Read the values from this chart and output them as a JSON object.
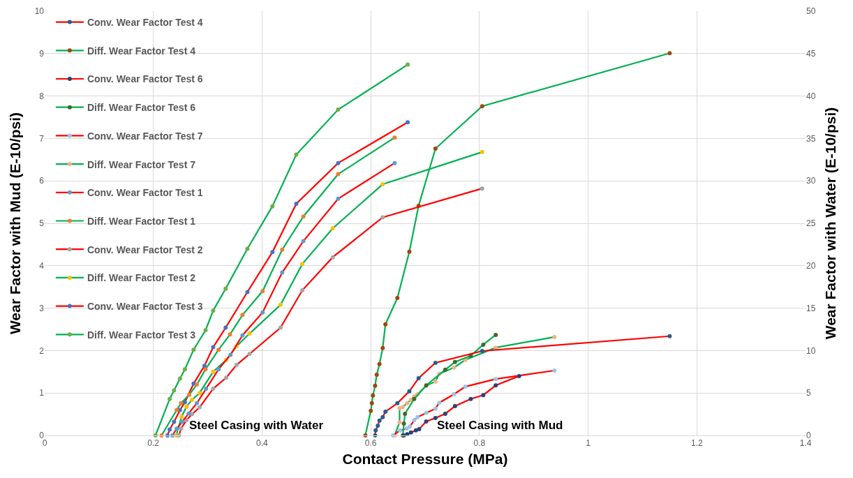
{
  "chart_data": {
    "type": "line",
    "xlabel": "Contact Pressure (MPa)",
    "ylabel": "Wear Factor with Mud (E-10/psi)",
    "y2label": "Wear Factor with Water (E-10/psi)",
    "xlim": [
      0,
      1.4
    ],
    "xticks": [
      0,
      0.2,
      0.4,
      0.6,
      0.8,
      1,
      1.2,
      1.4
    ],
    "ylim": [
      0,
      10
    ],
    "yticks": [
      0,
      1,
      2,
      3,
      4,
      5,
      6,
      7,
      8,
      9,
      10
    ],
    "y2lim": [
      0,
      50
    ],
    "y2ticks": [
      0,
      5,
      10,
      15,
      20,
      25,
      30,
      35,
      40,
      45,
      50
    ],
    "grid": true,
    "legend": "top left",
    "marker": "circle",
    "line_style": "solid",
    "annotations": [
      "Steel Casing with Water",
      "Steel Casing with Mud"
    ],
    "series": [
      {
        "name": "Conv. Wear Factor Test 4",
        "color": "#ff0000",
        "colors": [
          "#255e91",
          "#255e91",
          "#255e91",
          "#255e91",
          "#255e91",
          "#255e91",
          "#255e91",
          "#255e91",
          "#255e91",
          "#255e91",
          "#255e91",
          "#255e91"
        ],
        "x": [
          0.608,
          0.609,
          0.613,
          0.616,
          0.622,
          0.627,
          0.649,
          0.671,
          0.688,
          0.719,
          0.805,
          1.15
        ],
        "values": [
          0,
          0.12,
          0.23,
          0.35,
          0.43,
          0.56,
          0.76,
          1.04,
          1.35,
          1.71,
          1.99,
          2.34
        ]
      },
      {
        "name": "Diff. Wear Factor Test 4",
        "color": "#00b050",
        "colors": [
          "#9e480e",
          "#9e480e",
          "#9e480e",
          "#9e480e",
          "#9e480e",
          "#9e480e",
          "#9e480e",
          "#9e480e",
          "#9e480e",
          "#9e480e",
          "#9e480e",
          "#9e480e",
          "#9e480e",
          "#9e480e",
          "#9e480e"
        ],
        "x": [
          0.59,
          0.6,
          0.602,
          0.604,
          0.608,
          0.611,
          0.616,
          0.622,
          0.627,
          0.649,
          0.671,
          0.688,
          0.719,
          0.805,
          1.15
        ],
        "values": [
          0,
          0.58,
          0.76,
          0.94,
          1.17,
          1.43,
          1.68,
          2.06,
          2.62,
          3.24,
          4.33,
          5.41,
          6.76,
          7.76,
          9.01
        ]
      },
      {
        "name": "Conv. Wear Factor Test 6",
        "color": "#ff0000",
        "colors": [
          "#264478",
          "#264478",
          "#264478",
          "#264478",
          "#264478",
          "#264478",
          "#264478",
          "#264478",
          "#264478",
          "#264478",
          "#264478",
          "#264478",
          "#264478"
        ],
        "x": [
          0.661,
          0.667,
          0.674,
          0.683,
          0.689,
          0.702,
          0.719,
          0.737,
          0.755,
          0.784,
          0.807,
          0.83,
          0.873
        ],
        "values": [
          0,
          0.03,
          0.07,
          0.12,
          0.15,
          0.33,
          0.41,
          0.51,
          0.69,
          0.86,
          0.95,
          1.18,
          1.4
        ]
      },
      {
        "name": "Diff. Wear Factor Test 6",
        "color": "#00b050",
        "colors": [
          "#43682b",
          "#43682b",
          "#43682b",
          "#43682b",
          "#43682b",
          "#43682b",
          "#43682b",
          "#43682b",
          "#43682b",
          "#43682b"
        ],
        "x": [
          0.659,
          0.661,
          0.663,
          0.68,
          0.702,
          0.737,
          0.755,
          0.784,
          0.807,
          0.83
        ],
        "values": [
          0,
          0.28,
          0.51,
          0.86,
          1.18,
          1.55,
          1.73,
          1.88,
          2.14,
          2.37
        ]
      },
      {
        "name": "Conv. Wear Factor Test 7",
        "color": "#ff0000",
        "colors": [
          "#9dc3e6",
          "#9dc3e6",
          "#9dc3e6",
          "#9dc3e6",
          "#9dc3e6",
          "#9dc3e6",
          "#9dc3e6",
          "#9dc3e6",
          "#9dc3e6",
          "#9dc3e6",
          "#9dc3e6",
          "#9dc3e6",
          "#9dc3e6"
        ],
        "x": [
          0.641,
          0.654,
          0.666,
          0.672,
          0.68,
          0.686,
          0.702,
          0.719,
          0.726,
          0.753,
          0.774,
          0.83,
          0.938
        ],
        "values": [
          0,
          0.12,
          0.16,
          0.21,
          0.36,
          0.43,
          0.53,
          0.63,
          0.77,
          0.97,
          1.15,
          1.33,
          1.53
        ]
      },
      {
        "name": "Diff. Wear Factor Test 7",
        "color": "#00b050",
        "colors": [
          "#f4b183",
          "#f4b183",
          "#f4b183",
          "#f4b183",
          "#f4b183",
          "#f4b183",
          "#f4b183",
          "#f4b183",
          "#f4b183",
          "#f4b183",
          "#f4b183",
          "#f4b183",
          "#f4b183",
          "#f4b183",
          "#f4b183"
        ],
        "x": [
          0.644,
          0.653,
          0.653,
          0.659,
          0.667,
          0.674,
          0.68,
          0.686,
          0.702,
          0.719,
          0.726,
          0.753,
          0.774,
          0.83,
          0.938
        ],
        "values": [
          0,
          0.31,
          0.64,
          0.67,
          0.76,
          0.84,
          0.92,
          0.97,
          1.17,
          1.27,
          1.45,
          1.6,
          1.78,
          2.07,
          2.32
        ]
      },
      {
        "name": "Conv. Wear Factor Test 1",
        "color": "#ff0000",
        "axis": "y2",
        "colors": [
          "#5b9bd5",
          "#5b9bd5",
          "#5b9bd5",
          "#5b9bd5",
          "#5b9bd5",
          "#5b9bd5",
          "#5b9bd5",
          "#5b9bd5",
          "#5b9bd5",
          "#5b9bd5",
          "#5b9bd5",
          "#5b9bd5",
          "#5b9bd5",
          "#5b9bd5"
        ],
        "x": [
          0.235,
          0.243,
          0.253,
          0.265,
          0.28,
          0.297,
          0.32,
          0.342,
          0.364,
          0.401,
          0.437,
          0.476,
          0.54,
          0.644
        ],
        "values": [
          0,
          0.8,
          1.6,
          2.6,
          3.8,
          5.5,
          7.8,
          9.5,
          11.8,
          14.5,
          19.2,
          22.9,
          27.9,
          32.1
        ]
      },
      {
        "name": "Diff. Wear Factor Test 1",
        "color": "#00b050",
        "axis": "y2",
        "colors": [
          "#ed7d31",
          "#ed7d31",
          "#ed7d31",
          "#ed7d31",
          "#ed7d31",
          "#ed7d31",
          "#ed7d31",
          "#ed7d31",
          "#ed7d31",
          "#ed7d31",
          "#ed7d31",
          "#ed7d31",
          "#ed7d31",
          "#ed7d31"
        ],
        "x": [
          0.215,
          0.243,
          0.251,
          0.266,
          0.28,
          0.296,
          0.32,
          0.341,
          0.364,
          0.401,
          0.437,
          0.476,
          0.54,
          0.644
        ],
        "values": [
          0,
          3,
          3.8,
          4.8,
          6,
          7.8,
          10.1,
          11.9,
          14.2,
          17,
          21.9,
          25.8,
          30.8,
          35.1
        ]
      },
      {
        "name": "Conv. Wear Factor Test 2",
        "color": "#ff0000",
        "axis": "y2",
        "colors": [
          "#a5a5a5",
          "#a5a5a5",
          "#a5a5a5",
          "#a5a5a5",
          "#a5a5a5",
          "#a5a5a5",
          "#a5a5a5",
          "#a5a5a5",
          "#a5a5a5",
          "#a5a5a5",
          "#a5a5a5",
          "#a5a5a5",
          "#a5a5a5",
          "#a5a5a5"
        ],
        "x": [
          0.247,
          0.251,
          0.261,
          0.271,
          0.285,
          0.31,
          0.334,
          0.353,
          0.377,
          0.434,
          0.474,
          0.53,
          0.622,
          0.805
        ],
        "values": [
          0,
          0.8,
          1.8,
          2.5,
          3.3,
          5.5,
          6.8,
          8.3,
          9.6,
          12.7,
          17.1,
          21,
          25.7,
          29.1
        ]
      },
      {
        "name": "Diff. Wear Factor Test 2",
        "color": "#00b050",
        "axis": "y2",
        "colors": [
          "#ffc000",
          "#ffc000",
          "#ffc000",
          "#ffc000",
          "#ffc000",
          "#ffc000",
          "#ffc000",
          "#ffc000",
          "#ffc000",
          "#ffc000",
          "#ffc000",
          "#ffc000",
          "#ffc000",
          "#ffc000"
        ],
        "x": [
          0.242,
          0.252,
          0.261,
          0.271,
          0.285,
          0.31,
          0.334,
          0.353,
          0.377,
          0.434,
          0.474,
          0.53,
          0.622,
          0.805
        ],
        "values": [
          0,
          2.2,
          3.4,
          4.2,
          5,
          7.5,
          8.9,
          10.5,
          12,
          15.4,
          20.2,
          24.4,
          29.6,
          33.4
        ]
      },
      {
        "name": "Conv. Wear Factor Test 3",
        "color": "#ff0000",
        "axis": "y2",
        "colors": [
          "#4472c4",
          "#4472c4",
          "#4472c4",
          "#4472c4",
          "#4472c4",
          "#4472c4",
          "#4472c4",
          "#4472c4",
          "#4472c4",
          "#4472c4",
          "#4472c4",
          "#4472c4",
          "#4472c4",
          "#4472c4"
        ],
        "x": [
          0.226,
          0.23,
          0.238,
          0.249,
          0.258,
          0.274,
          0.294,
          0.31,
          0.333,
          0.373,
          0.419,
          0.463,
          0.54,
          0.668
        ],
        "values": [
          0,
          0.7,
          1.6,
          3,
          3.9,
          6.1,
          8.2,
          10.4,
          12.7,
          16.9,
          21.6,
          27.3,
          32.1,
          36.9
        ]
      },
      {
        "name": "Diff. Wear Factor Test 3",
        "color": "#00b050",
        "axis": "y2",
        "colors": [
          "#70ad47",
          "#70ad47",
          "#70ad47",
          "#70ad47",
          "#70ad47",
          "#70ad47",
          "#70ad47",
          "#70ad47",
          "#70ad47",
          "#70ad47",
          "#70ad47",
          "#70ad47",
          "#70ad47",
          "#70ad47"
        ],
        "x": [
          0.204,
          0.23,
          0.238,
          0.249,
          0.258,
          0.274,
          0.296,
          0.31,
          0.333,
          0.373,
          0.419,
          0.463,
          0.54,
          0.668
        ],
        "values": [
          0,
          4.3,
          5.3,
          6.7,
          7.8,
          10.1,
          12.4,
          14.7,
          17.3,
          22,
          27,
          33.1,
          38.4,
          43.7
        ]
      }
    ]
  }
}
